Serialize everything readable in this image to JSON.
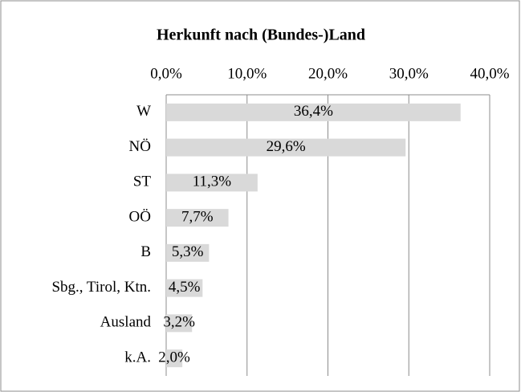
{
  "chart_data": {
    "type": "bar",
    "orientation": "horizontal",
    "title": "Herkunft nach (Bundes-)Land",
    "categories": [
      "W",
      "NÖ",
      "ST",
      "OÖ",
      "B",
      "Sbg., Tirol, Ktn.",
      "Ausland",
      "k.A."
    ],
    "values": [
      36.4,
      29.6,
      11.3,
      7.7,
      5.3,
      4.5,
      3.2,
      2.0
    ],
    "value_labels": [
      "36,4%",
      "29,6%",
      "11,3%",
      "7,7%",
      "5,3%",
      "4,5%",
      "3,2%",
      "2,0%"
    ],
    "color": "#d9d9d9",
    "xlim": [
      0,
      40
    ],
    "xticks": [
      {
        "value": 0,
        "label": "0,0%"
      },
      {
        "value": 10,
        "label": "10,0%"
      },
      {
        "value": 20,
        "label": "20,0%"
      },
      {
        "value": 30,
        "label": "30,0%"
      },
      {
        "value": 40,
        "label": "40,0%"
      }
    ],
    "grid": true
  }
}
